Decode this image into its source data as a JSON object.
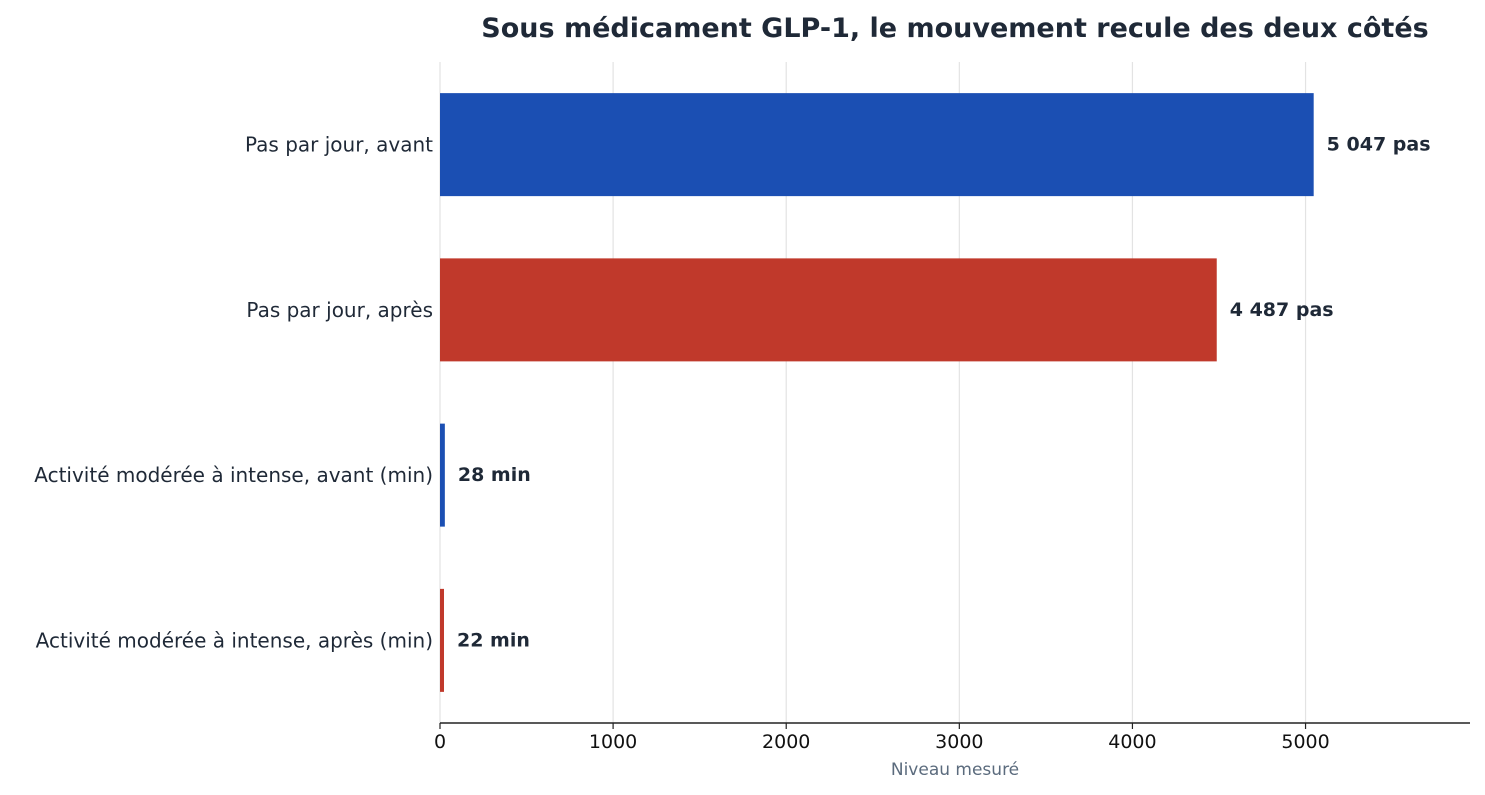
{
  "chart_data": {
    "type": "bar",
    "orientation": "horizontal",
    "title": "Sous médicament GLP-1, le mouvement recule des deux côtés",
    "xlabel": "Niveau mesuré",
    "ylabel": "",
    "xlim": [
      0,
      5950
    ],
    "xticks": [
      0,
      1000,
      2000,
      3000,
      4000,
      5000
    ],
    "xtick_labels": [
      "0",
      "1000",
      "2000",
      "3000",
      "4000",
      "5000"
    ],
    "grid": true,
    "categories": [
      "Pas par jour, avant",
      "Pas par jour, après",
      "Activité modérée à intense, avant (min)",
      "Activité modérée à intense, après (min)"
    ],
    "values": [
      5047,
      4487,
      28,
      22
    ],
    "value_labels": [
      "5 047 pas",
      "4 487 pas",
      "28 min",
      "22 min"
    ],
    "bar_colors": [
      "#1b4fb3",
      "#c0392b",
      "#1b4fb3",
      "#c0392b"
    ]
  }
}
